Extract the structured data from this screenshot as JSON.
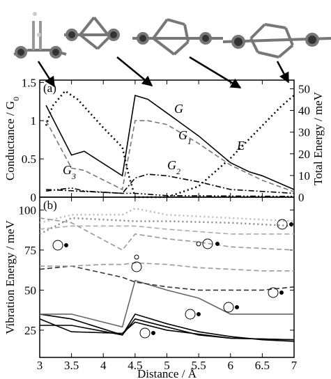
{
  "chart_data": [
    {
      "type": "line",
      "panel_label": "(a)",
      "ylabel": {
        "text": "Conductance / G",
        "sub": "0"
      },
      "y2label": "Total Energy / meV",
      "xlim": [
        3,
        7
      ],
      "xticks": [
        3,
        3.5,
        4,
        4.5,
        5,
        5.5,
        6,
        6.5,
        7
      ],
      "ylim": [
        0,
        1.53
      ],
      "yticks": [
        0,
        0.5,
        1,
        1.5
      ],
      "y2lim": [
        0,
        54
      ],
      "y2ticks": [
        0,
        10,
        20,
        30,
        40,
        50
      ],
      "series": [
        {
          "label": {
            "text": "G"
          },
          "color": "#000000",
          "dash": "solid",
          "x": [
            3.1,
            3.5,
            3.7,
            4.3,
            4.5,
            4.7,
            5,
            5.5,
            6,
            6.3,
            6.5,
            7
          ],
          "values": [
            1.2,
            0.55,
            0.6,
            0.28,
            1.33,
            1.28,
            1.1,
            0.8,
            0.45,
            0.33,
            0.28,
            0.1
          ]
        },
        {
          "label": {
            "text": "G",
            "sub": "1"
          },
          "color": "#777777",
          "dash": "dashed",
          "x": [
            3.1,
            3.5,
            3.7,
            4.3,
            4.5,
            4.7,
            5,
            5.5,
            6,
            6.5,
            7
          ],
          "values": [
            1.0,
            0.38,
            0.35,
            0.1,
            1.0,
            1.0,
            0.95,
            0.7,
            0.42,
            0.22,
            0.07
          ]
        },
        {
          "label": {
            "text": "G",
            "sub": "2"
          },
          "color": "#000000",
          "dash": "dashdot",
          "x": [
            3.1,
            4.3,
            4.5,
            4.7,
            5,
            5.5,
            6,
            7
          ],
          "values": [
            0.1,
            0.05,
            0.25,
            0.3,
            0.28,
            0.2,
            0.1,
            0.05
          ]
        },
        {
          "label": {
            "text": "G",
            "sub": "3"
          },
          "color": "#000000",
          "dash": "dashdotdot",
          "x": [
            3.1,
            3.5,
            3.7,
            4.3,
            4.5,
            5,
            7
          ],
          "values": [
            0.08,
            0.12,
            0.08,
            0.05,
            0.05,
            0.02,
            0.01
          ]
        },
        {
          "label": {
            "text": "E"
          },
          "color": "#000000",
          "dash": "dotted",
          "axis": "y2",
          "x": [
            3.1,
            3.2,
            3.4,
            3.6,
            4,
            4.3,
            4.4,
            4.5,
            5,
            5.5,
            6,
            6.5,
            6.8,
            7
          ],
          "values": [
            33,
            42,
            49,
            45,
            32,
            23,
            10,
            0,
            0,
            5,
            18,
            33,
            42,
            47
          ]
        }
      ]
    },
    {
      "type": "line",
      "panel_label": "(b)",
      "ylabel": "Vibration Energy / meV",
      "xlabel": "Distance / Å",
      "xlim": [
        3,
        7
      ],
      "xticks": [
        3,
        3.5,
        4,
        4.5,
        5,
        5.5,
        6,
        6.5,
        7
      ],
      "ylim": [
        8,
        108
      ],
      "yticks": [
        25,
        50,
        75,
        100
      ],
      "series": [
        {
          "color": "#000000",
          "dash": "solid",
          "x": [
            3,
            3.5,
            4.3,
            4.5,
            5,
            5.5,
            6,
            6.5,
            7
          ],
          "values": [
            28,
            28,
            22,
            35,
            29,
            24,
            21,
            19,
            18
          ]
        },
        {
          "color": "#000000",
          "dash": "solid",
          "x": [
            3,
            3.5,
            4.3,
            4.5,
            5,
            5.5,
            6,
            7
          ],
          "values": [
            35,
            32,
            22,
            32,
            27,
            22,
            20,
            19
          ]
        },
        {
          "color": "#000000",
          "dash": "solid",
          "x": [
            3,
            3.5,
            4.3,
            4.5,
            5,
            6,
            7
          ],
          "values": [
            32,
            24,
            23,
            30,
            25,
            20,
            19
          ]
        },
        {
          "color": "#666666",
          "dash": "solid",
          "x": [
            3,
            3.5,
            4.3,
            4.5,
            5,
            5.5,
            6,
            6.5,
            7
          ],
          "values": [
            35,
            35,
            27,
            56,
            50,
            45,
            35,
            35,
            35
          ]
        },
        {
          "color": "#333333",
          "dash": "dashed",
          "x": [
            3,
            3.5,
            4.3,
            4.5,
            5,
            5.5,
            6,
            6.5,
            7
          ],
          "values": [
            63,
            65,
            58,
            55,
            52,
            50,
            50,
            50,
            52
          ]
        },
        {
          "color": "#999999",
          "dash": "dashed",
          "x": [
            3,
            3.5,
            4,
            4.3,
            4.5,
            5,
            5.5,
            6,
            6.5,
            7
          ],
          "values": [
            65,
            65,
            66,
            66,
            67,
            66,
            64,
            63,
            62,
            62
          ]
        },
        {
          "color": "#999999",
          "dash": "dashed",
          "x": [
            3,
            3.5,
            4.3,
            4.5,
            5,
            5.5,
            6,
            6.5,
            7
          ],
          "values": [
            95,
            92,
            75,
            85,
            82,
            80,
            77,
            76,
            75
          ]
        },
        {
          "color": "#aaaaaa",
          "dash": "dashed",
          "x": [
            3,
            3.5,
            4.5,
            5,
            6,
            7
          ],
          "values": [
            88,
            90,
            90,
            88,
            85,
            85
          ]
        },
        {
          "color": "#bbbbbb",
          "dash": "dotted",
          "x": [
            3,
            3.5,
            4,
            4.3,
            4.5,
            5,
            5.5,
            6,
            6.5,
            7
          ],
          "values": [
            92,
            97,
            97,
            97,
            101,
            97,
            96,
            95,
            94,
            93
          ]
        },
        {
          "color": "#888888",
          "dash": "dotted",
          "x": [
            3,
            3.5,
            4.5,
            5,
            6,
            7
          ],
          "values": [
            85,
            95,
            93,
            93,
            92,
            90
          ]
        }
      ]
    }
  ]
}
